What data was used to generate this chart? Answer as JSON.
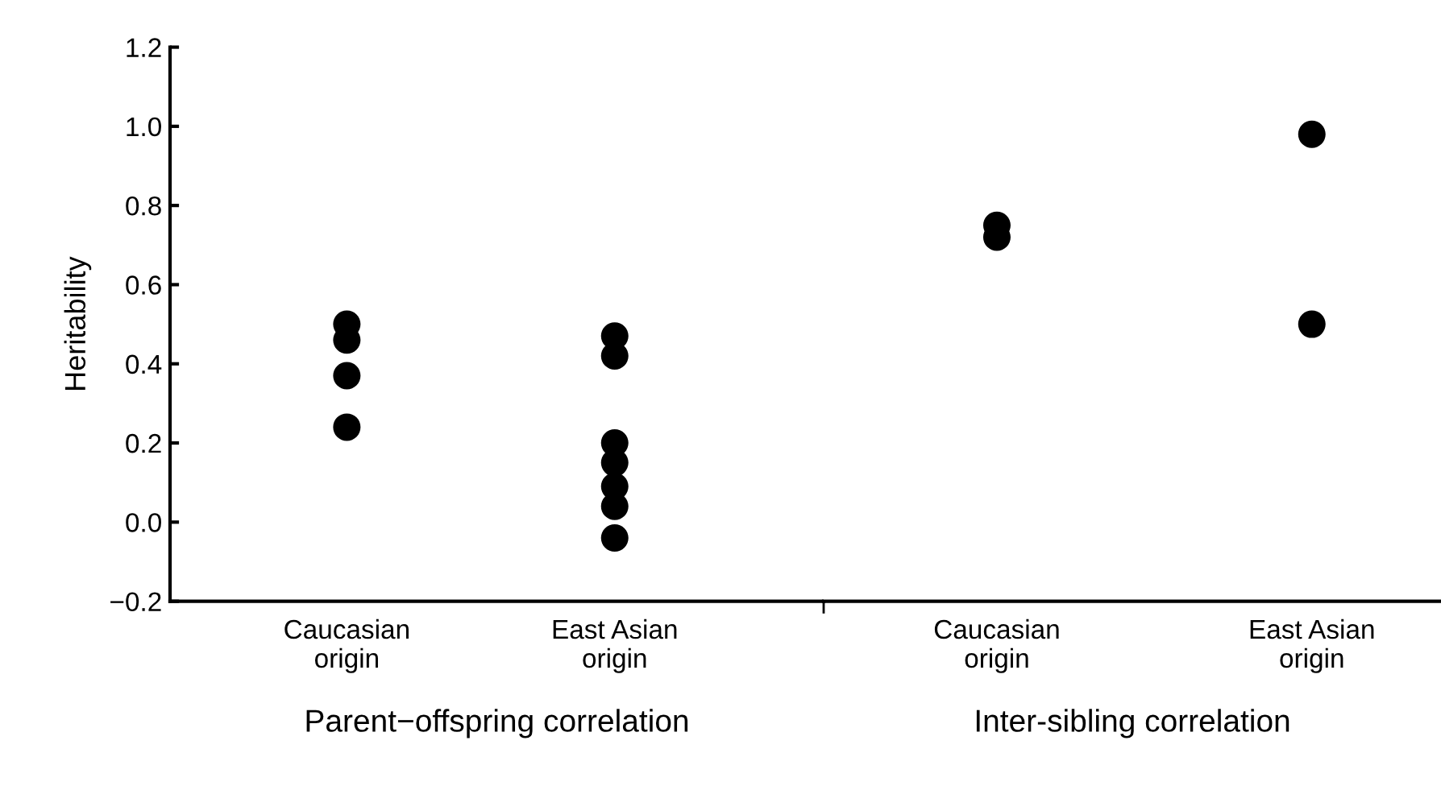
{
  "chart_data": [
    {
      "type": "scatter",
      "ylabel": "Heritability",
      "xlabel": "Parent−offspring correlation",
      "categories": [
        "Caucasian\norigin",
        "East Asian\norigin"
      ],
      "series": [
        {
          "color": "#000000",
          "x": [
            "Caucasian\norigin",
            "Caucasian\norigin",
            "Caucasian\norigin",
            "Caucasian\norigin"
          ],
          "values": [
            0.5,
            0.46,
            0.37,
            0.24
          ]
        },
        {
          "color": "#000000",
          "x": [
            "East Asian\norigin",
            "East Asian\norigin",
            "East Asian\norigin",
            "East Asian\norigin",
            "East Asian\norigin",
            "East Asian\norigin",
            "East Asian\norigin"
          ],
          "values": [
            0.47,
            0.42,
            0.2,
            0.15,
            0.09,
            0.04,
            -0.04
          ]
        }
      ],
      "ylim": [
        -0.2,
        1.2
      ],
      "yticks": [
        {
          "value": -0.2,
          "label": "−0.2"
        },
        {
          "value": 0.0,
          "label": "0.0"
        },
        {
          "value": 0.2,
          "label": "0.2"
        },
        {
          "value": 0.4,
          "label": "0.4"
        },
        {
          "value": 0.6,
          "label": "0.6"
        },
        {
          "value": 0.8,
          "label": "0.8"
        },
        {
          "value": 1.0,
          "label": "1.0"
        },
        {
          "value": 1.2,
          "label": "1.2"
        }
      ],
      "marker": "circle",
      "grid": false,
      "legend": false
    },
    {
      "type": "scatter",
      "xlabel": "Inter-sibling correlation",
      "categories": [
        "Caucasian\norigin",
        "East Asian\norigin"
      ],
      "series": [
        {
          "color": "#000000",
          "x": [
            "Caucasian\norigin",
            "Caucasian\norigin"
          ],
          "values": [
            0.75,
            0.72
          ]
        },
        {
          "color": "#000000",
          "x": [
            "East Asian\norigin",
            "East Asian\norigin"
          ],
          "values": [
            0.98,
            0.5
          ]
        }
      ],
      "ylim": [
        -0.2,
        1.2
      ],
      "tick_labels": "x",
      "marker": "circle",
      "grid": false,
      "legend": false
    }
  ]
}
